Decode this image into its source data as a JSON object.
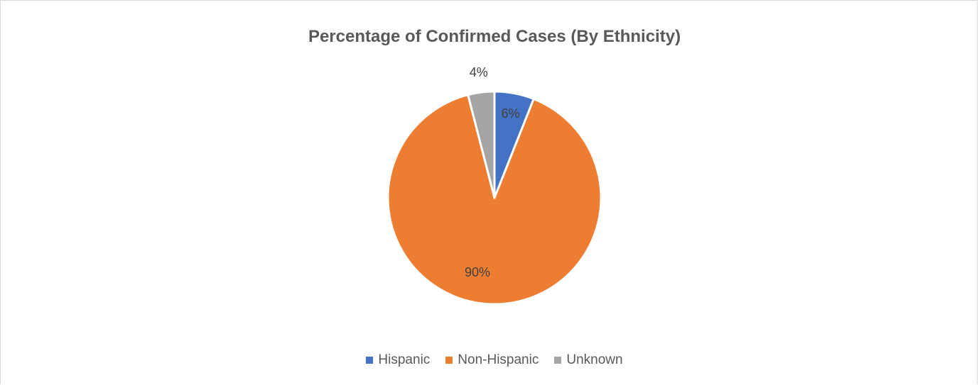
{
  "chart_data": {
    "type": "pie",
    "title": "Percentage of Confirmed Cases (By Ethnicity)",
    "slices": [
      {
        "name": "Hispanic",
        "value": 6,
        "label": "6%",
        "color": "#4472c4"
      },
      {
        "name": "Non-Hispanic",
        "value": 90,
        "label": "90%",
        "color": "#ed7d31"
      },
      {
        "name": "Unknown",
        "value": 4,
        "label": "4%",
        "color": "#a5a5a5"
      }
    ],
    "legend_position": "bottom",
    "start_angle": "12 o'clock, clockwise"
  }
}
